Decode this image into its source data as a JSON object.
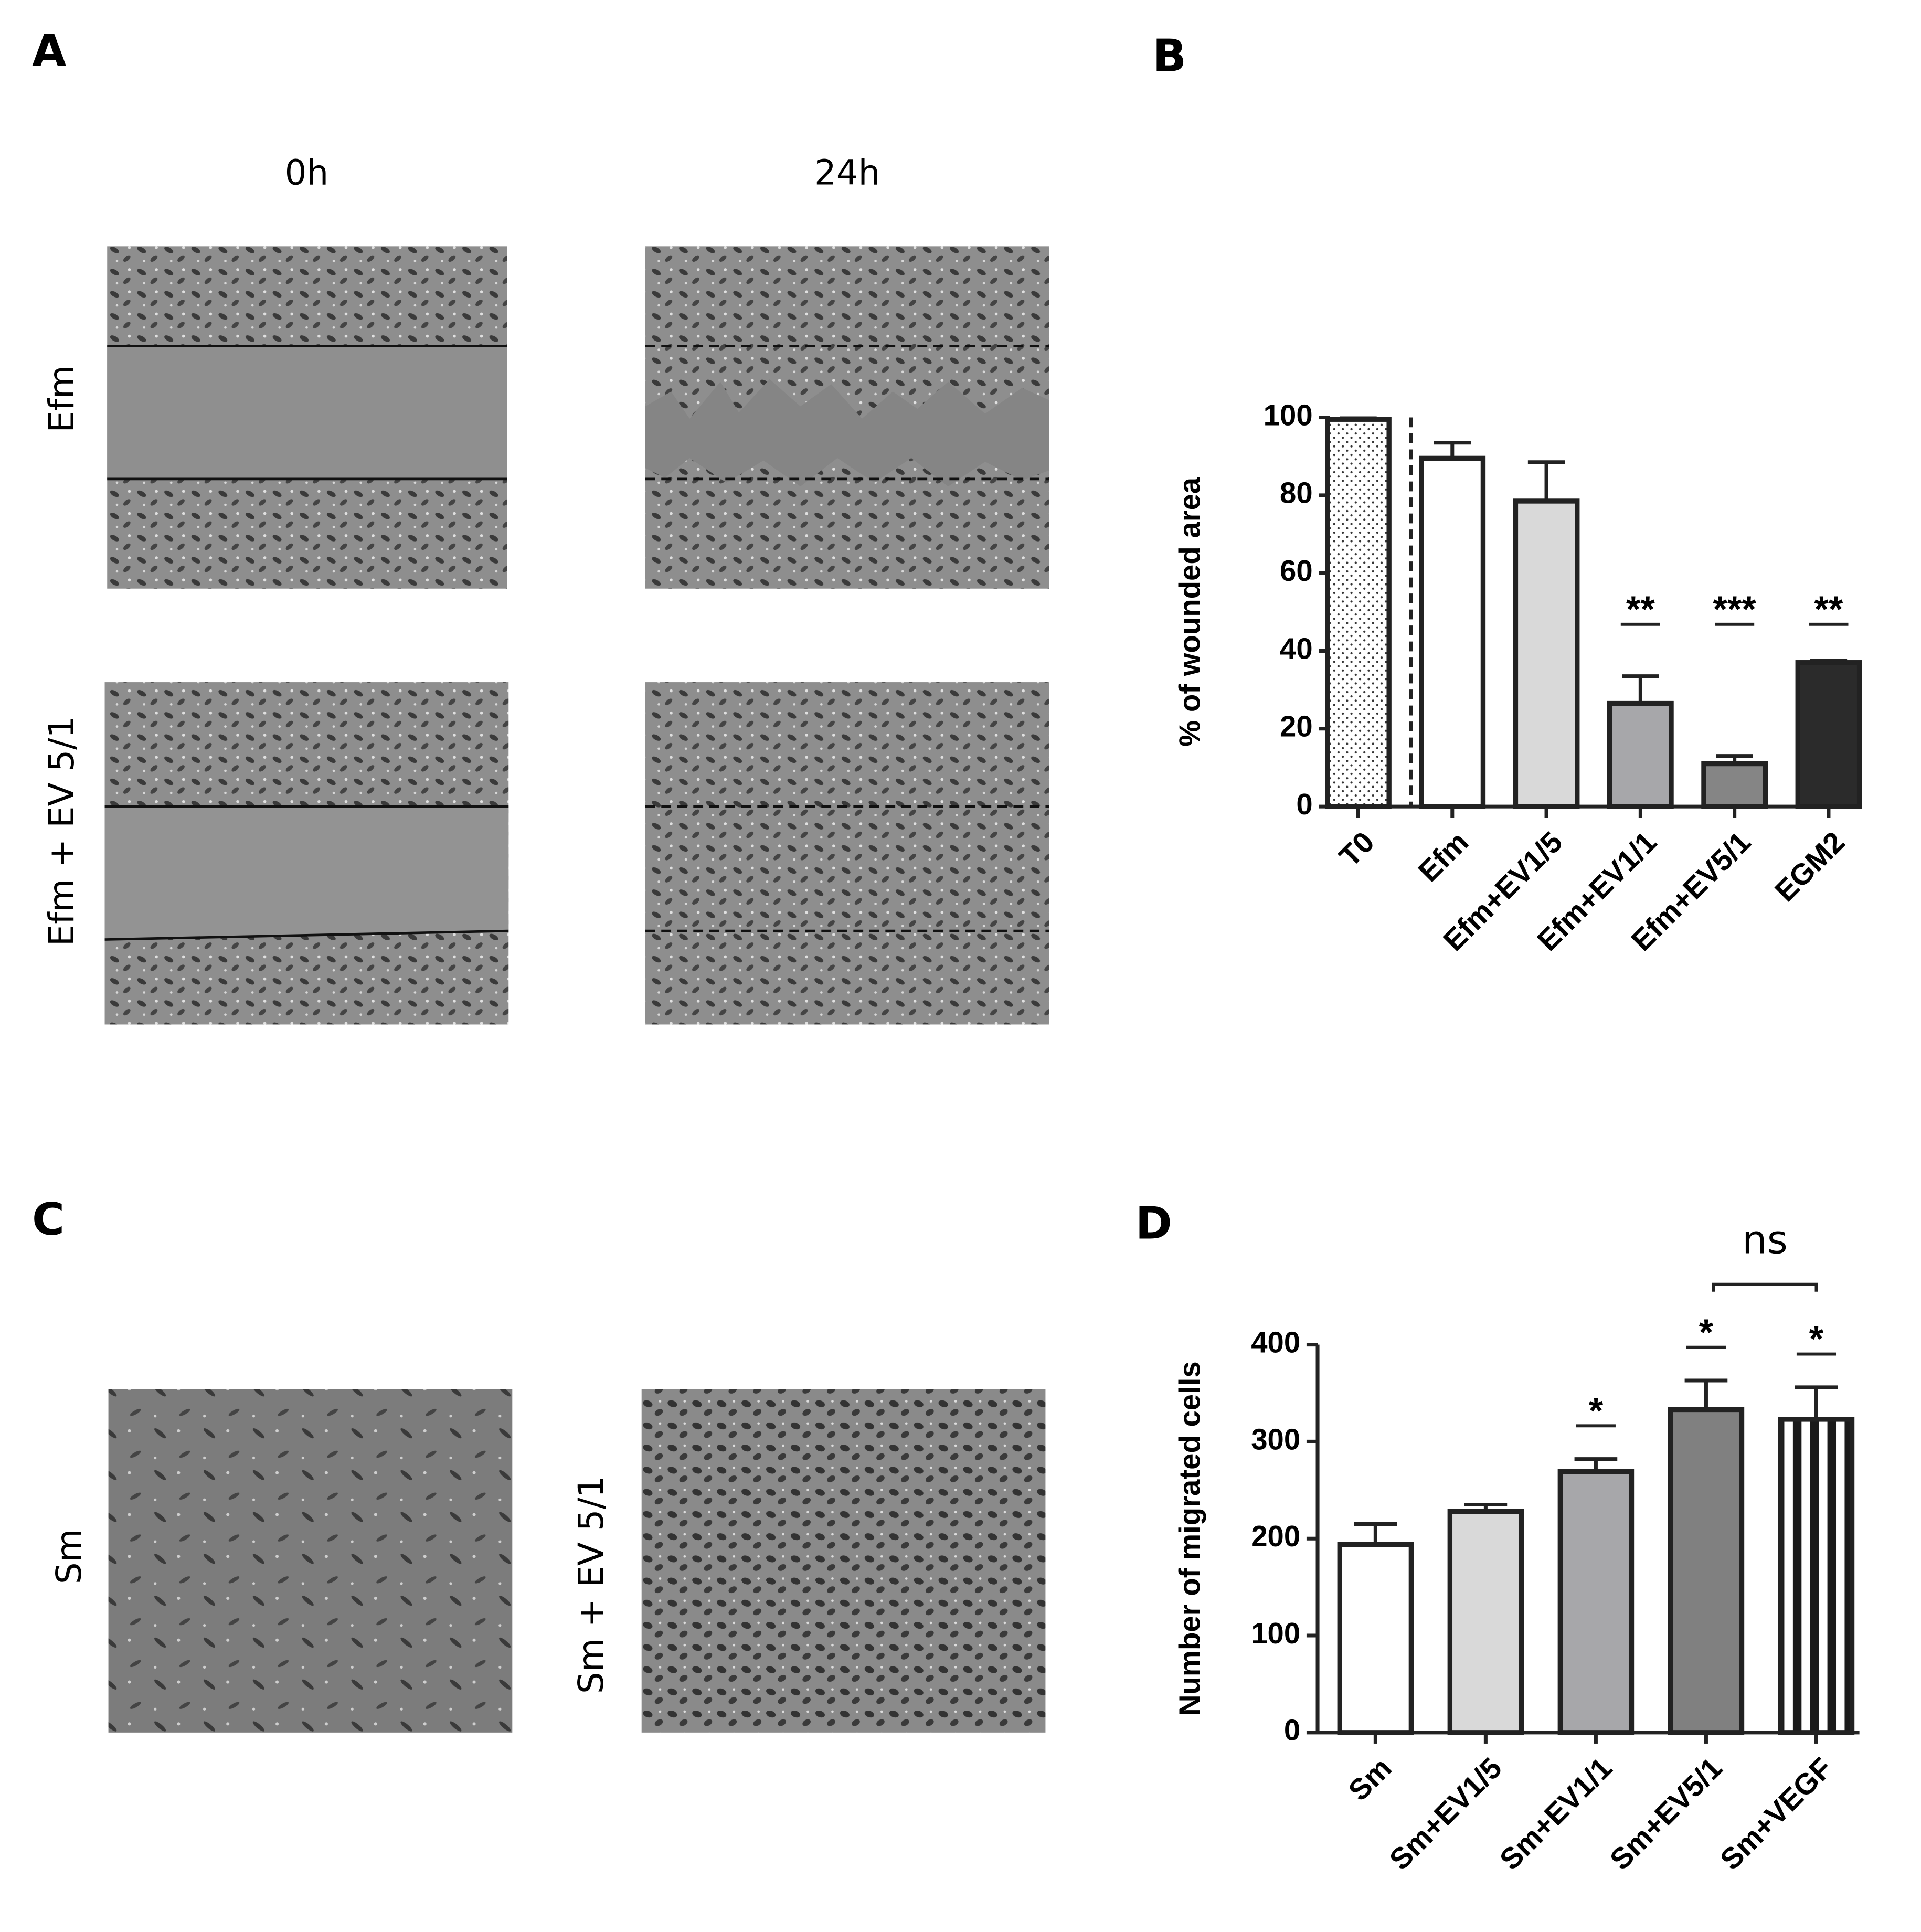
{
  "panels": {
    "A": {
      "label": "A",
      "columns": [
        "0h",
        "24h"
      ],
      "rows": [
        "Efm",
        "Efm + EV 5/1"
      ]
    },
    "C": {
      "label": "C",
      "images": [
        "Sm",
        "Sm + EV 5/1"
      ]
    }
  },
  "chart_data": [
    {
      "type": "bar",
      "panel_label": "B",
      "y_label": "% of wounded area",
      "categories": [
        "T0",
        "Efm",
        "Efm+EV1/5",
        "Efm+EV1/1",
        "Efm+EV5/1",
        "EGM2"
      ],
      "values": [
        99.5,
        89.5,
        78.5,
        26.5,
        11,
        37
      ],
      "errors": [
        0.3,
        4,
        10,
        7,
        2,
        0.5
      ],
      "colors": [
        "#ffffff",
        "#ffffff",
        "#d9d9d9",
        "#a7a7aa",
        "#858585",
        "#2b2b2b"
      ],
      "patterns": [
        {
          "category": "T0",
          "pattern": "dots"
        }
      ],
      "annotations": [
        {
          "category": "Efm+EV1/1",
          "text": "**"
        },
        {
          "category": "Efm+EV5/1",
          "text": "***"
        },
        {
          "category": "EGM2",
          "text": "**"
        }
      ],
      "ylim": [
        0,
        100
      ],
      "yticks": [
        0,
        20,
        40,
        60,
        80,
        100
      ]
    },
    {
      "type": "bar",
      "panel_label": "D",
      "y_label": "Number of migrated cells",
      "categories": [
        "Sm",
        "Sm+EV1/5",
        "Sm+EV1/1",
        "Sm+EV5/1",
        "Sm+VEGF"
      ],
      "values": [
        194,
        228,
        269,
        333,
        323
      ],
      "errors": [
        21,
        7,
        13,
        30,
        33
      ],
      "colors": [
        "#ffffff",
        "#d9d9d9",
        "#a7a7aa",
        "#808080",
        "#ffffff"
      ],
      "patterns": [
        {
          "category": "Sm+VEGF",
          "pattern": "stripes"
        }
      ],
      "annotations": [
        {
          "category": "Sm+EV1/1",
          "text": "*"
        },
        {
          "category": "Sm+EV5/1",
          "text": "*"
        },
        {
          "category": "Sm+VEGF",
          "text": "*"
        }
      ],
      "brackets": [
        {
          "from": "Sm+EV5/1",
          "to": "Sm+VEGF",
          "text": "ns"
        }
      ],
      "ylim": [
        0,
        400
      ],
      "yticks": [
        0,
        100,
        200,
        300,
        400
      ]
    }
  ]
}
